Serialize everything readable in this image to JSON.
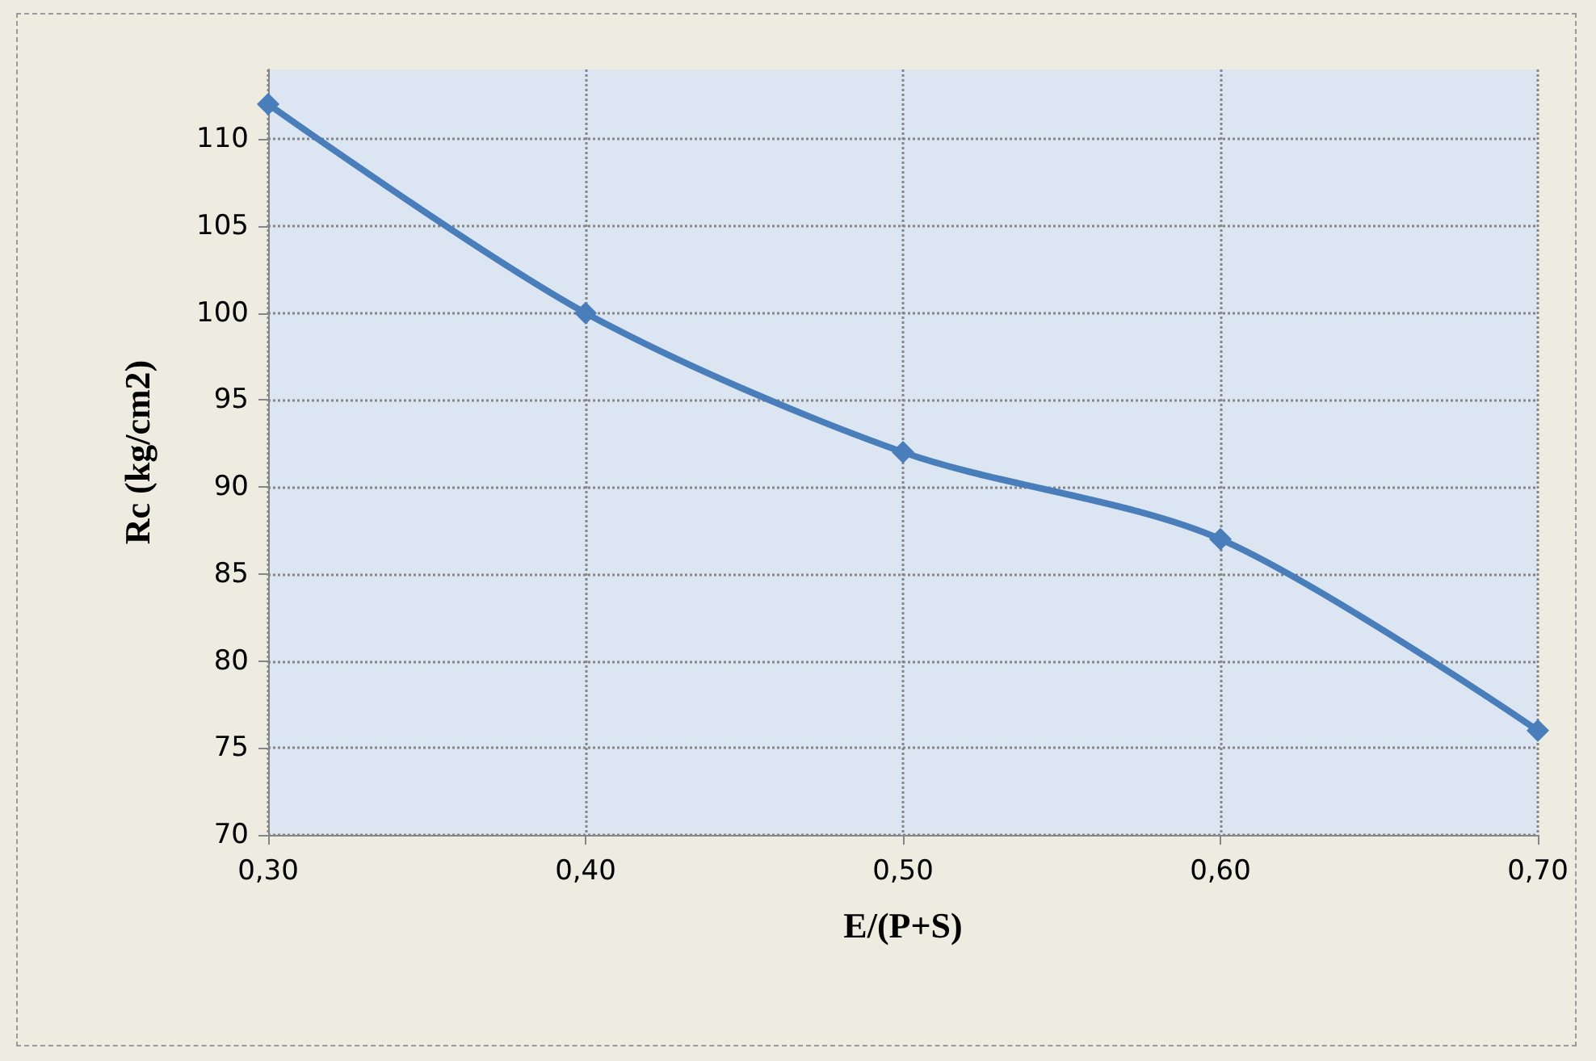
{
  "chart_data": {
    "type": "line",
    "xlabel": "E/(P+S)",
    "ylabel": "Rc (kg/cm2)",
    "x": [
      0.3,
      0.4,
      0.5,
      0.6,
      0.7
    ],
    "series": [
      {
        "color": "#4a7ebb",
        "values": [
          112,
          100,
          92,
          87,
          76
        ]
      }
    ],
    "xlim": [
      0.3,
      0.7
    ],
    "xticks": [
      {
        "value": 0.3,
        "label": "0,30"
      },
      {
        "value": 0.4,
        "label": "0,40"
      },
      {
        "value": 0.5,
        "label": "0,50"
      },
      {
        "value": 0.6,
        "label": "0,60"
      },
      {
        "value": 0.7,
        "label": "0,70"
      }
    ],
    "ylim": [
      70,
      114
    ],
    "yticks": [
      70,
      75,
      80,
      85,
      90,
      95,
      100,
      105,
      110
    ],
    "grid": true,
    "marker": "diamond",
    "line_style": "solid"
  }
}
